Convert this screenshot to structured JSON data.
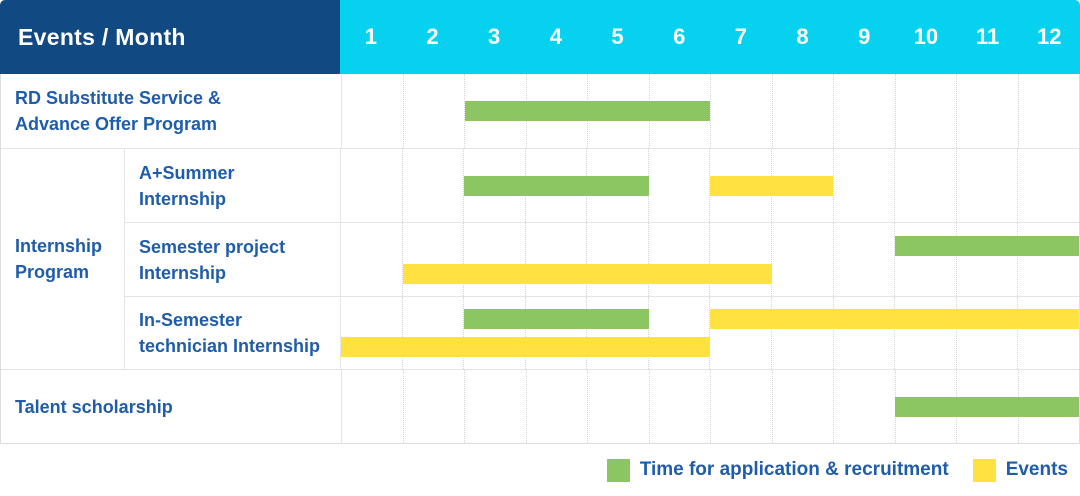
{
  "header": {
    "title": "Events / Month"
  },
  "colors": {
    "header_bg": "#114A82",
    "months_bg": "#06D2F0",
    "application": "#8CC663",
    "events": "#FFE23F",
    "label_text": "#1F5CA9",
    "grid_dotted": "#D5D5D5",
    "row_line": "#E4E4E4"
  },
  "chart_data": {
    "type": "gantt",
    "unit": "month",
    "title": "Events / Month",
    "months": [
      "1",
      "2",
      "3",
      "4",
      "5",
      "6",
      "7",
      "8",
      "9",
      "10",
      "11",
      "12"
    ],
    "x_range": [
      1,
      12
    ],
    "grid": "dotted-vertical-month-lines",
    "legend_position": "bottom-right",
    "legend": [
      {
        "kind": "application",
        "label": "Time for application & recruitment",
        "color": "#8CC663"
      },
      {
        "kind": "events",
        "label": "Events",
        "color": "#FFE23F"
      }
    ],
    "group": {
      "label": "Internship Program",
      "label_lines": [
        "Internship",
        "Program"
      ]
    },
    "rows": [
      {
        "id": "rd-substitute-service",
        "group": null,
        "label": "RD Substitute Service & Advance Offer Program",
        "label_lines": [
          "RD Substitute Service &",
          "Advance Offer Program"
        ],
        "bars": [
          {
            "kind": "application",
            "start_month": 3,
            "end_month": 6,
            "lane": "center"
          }
        ]
      },
      {
        "id": "a-plus-summer-internship",
        "group": "Internship Program",
        "label": "A+Summer Internship",
        "label_lines": [
          "A+Summer",
          "Internship"
        ],
        "bars": [
          {
            "kind": "application",
            "start_month": 3,
            "end_month": 5,
            "lane": "center"
          },
          {
            "kind": "events",
            "start_month": 7,
            "end_month": 8,
            "lane": "center"
          }
        ]
      },
      {
        "id": "semester-project-internship",
        "group": "Internship Program",
        "label": "Semester project Internship",
        "label_lines": [
          "Semester project",
          "Internship"
        ],
        "bars": [
          {
            "kind": "application",
            "start_month": 10,
            "end_month": 12,
            "lane": "top"
          },
          {
            "kind": "events",
            "start_month": 2,
            "end_month": 7,
            "lane": "bottom"
          }
        ]
      },
      {
        "id": "in-semester-technician-internship",
        "group": "Internship Program",
        "label": "In-Semester technician Internship",
        "label_lines": [
          "In-Semester",
          "technician Internship"
        ],
        "bars": [
          {
            "kind": "application",
            "start_month": 3,
            "end_month": 5,
            "lane": "top"
          },
          {
            "kind": "events",
            "start_month": 7,
            "end_month": 12,
            "lane": "top"
          },
          {
            "kind": "events",
            "start_month": 1,
            "end_month": 6,
            "lane": "bottom"
          }
        ]
      },
      {
        "id": "talent-scholarship",
        "group": null,
        "label": "Talent scholarship",
        "label_lines": [
          "Talent scholarship"
        ],
        "bars": [
          {
            "kind": "application",
            "start_month": 10,
            "end_month": 12,
            "lane": "center"
          }
        ]
      }
    ]
  }
}
